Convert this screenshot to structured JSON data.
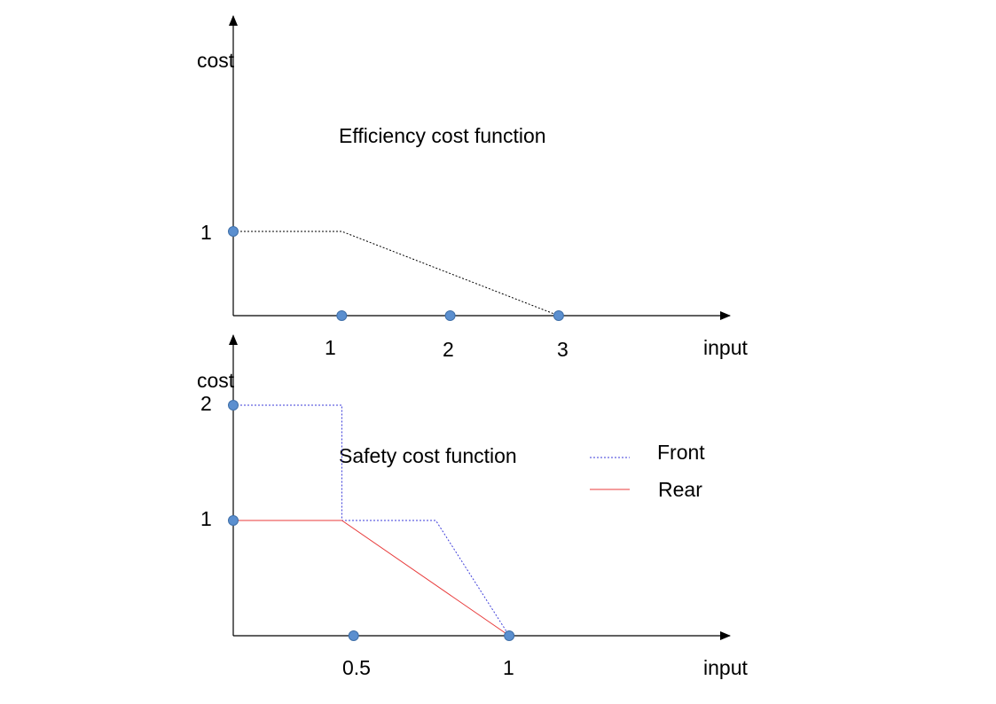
{
  "top_panel": {
    "title": "Efficiency cost function",
    "y_axis_label": "cost",
    "x_axis_label": "input",
    "y_ticks": [
      "1"
    ],
    "x_ticks": [
      "1",
      "2",
      "3"
    ],
    "curve": {
      "points": [
        [
          0,
          1
        ],
        [
          1,
          1
        ],
        [
          3,
          0
        ]
      ],
      "style": "dotted",
      "color": "#000000"
    },
    "markers": [
      [
        0,
        1
      ],
      [
        1,
        0
      ],
      [
        2,
        0
      ],
      [
        3,
        0
      ]
    ],
    "marker_color": "#5b8fcf"
  },
  "bottom_panel": {
    "title": "Safety cost function",
    "y_axis_label": "cost",
    "x_axis_label": "input",
    "y_ticks": [
      "1",
      "2"
    ],
    "x_ticks": [
      "0.5",
      "1"
    ],
    "legend": [
      {
        "name": "Front",
        "style": "dotted",
        "color": "#3b3bd9"
      },
      {
        "name": "Rear",
        "style": "solid",
        "color": "#e83b3b"
      }
    ],
    "front_curve": [
      [
        0,
        2
      ],
      [
        0.37,
        2
      ],
      [
        0.37,
        1
      ],
      [
        0.69,
        1
      ],
      [
        0.94,
        0
      ]
    ],
    "rear_curve": [
      [
        0,
        1
      ],
      [
        0.37,
        1
      ],
      [
        0.94,
        0
      ]
    ],
    "markers": [
      [
        0,
        2
      ],
      [
        0,
        1
      ],
      [
        0.41,
        0
      ],
      [
        0.94,
        0
      ]
    ],
    "marker_color": "#5b8fcf"
  }
}
